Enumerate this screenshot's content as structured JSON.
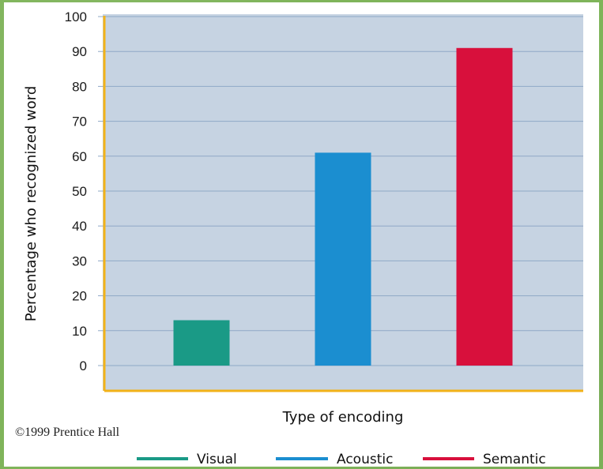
{
  "credit": "©1999 Prentice Hall",
  "chart_data": {
    "type": "bar",
    "title": "",
    "xlabel": "Type of encoding",
    "ylabel": "Percentage who recognized word",
    "categories": [
      "Visual",
      "Acoustic",
      "Semantic"
    ],
    "values": [
      13,
      61,
      91
    ],
    "colors": [
      "#1a9a86",
      "#1b8ed0",
      "#d8103c"
    ],
    "ylim": [
      0,
      100
    ],
    "yticks": [
      0,
      10,
      20,
      30,
      40,
      50,
      60,
      70,
      80,
      90,
      100
    ],
    "grid": true,
    "plot_background": "#c6d3e2",
    "axis_color": "#f2b218",
    "legend_position": "bottom-right"
  }
}
